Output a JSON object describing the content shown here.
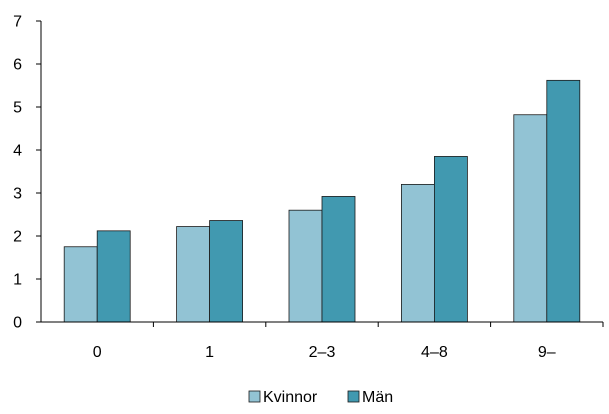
{
  "chart_data": {
    "type": "bar",
    "categories": [
      "0",
      "1",
      "2–3",
      "4–8",
      "9–"
    ],
    "series": [
      {
        "name": "Kvinnor",
        "values": [
          1.75,
          2.22,
          2.6,
          3.2,
          4.82
        ]
      },
      {
        "name": "Män",
        "values": [
          2.12,
          2.36,
          2.92,
          3.85,
          5.62
        ]
      }
    ],
    "ylim": [
      0,
      7
    ],
    "yticks": [
      "0",
      "1",
      "2",
      "3",
      "4",
      "5",
      "6",
      "7"
    ],
    "grid": false,
    "legend_position": "bottom",
    "colors": {
      "Kvinnor": "#92c3d4",
      "Män": "#4199b0",
      "bar_border": "#1a1a1a",
      "axis": "#000000"
    }
  }
}
